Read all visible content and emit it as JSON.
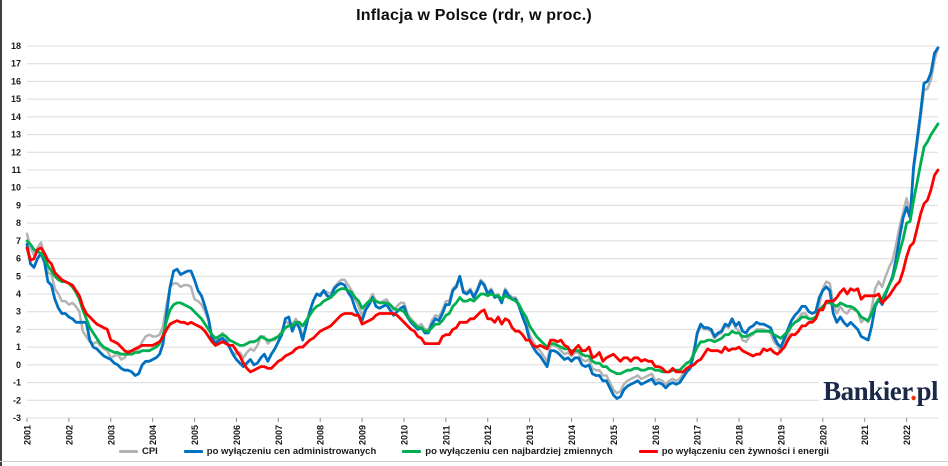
{
  "title": "Inflacja w Polsce (rdr, w proc.)",
  "logo": {
    "main": "Bankier",
    "dot": ".",
    "suffix": "pl"
  },
  "chart_data": {
    "type": "line",
    "title": "Inflacja w Polsce (rdr, w proc.)",
    "x_unit": "monthly",
    "x_start": "2001-01",
    "x_end": "2022-10",
    "ylim": [
      -3,
      18
    ],
    "grid": "horizontal",
    "legend_position": "bottom",
    "y_ticks": [
      -3,
      -2,
      -1,
      0,
      1,
      2,
      3,
      4,
      5,
      6,
      7,
      8,
      9,
      10,
      11,
      12,
      13,
      14,
      15,
      16,
      17,
      18
    ],
    "year_labels": [
      "2001",
      "2002",
      "2003",
      "2004",
      "2005",
      "2006",
      "2007",
      "2008",
      "2009",
      "2010",
      "2011",
      "2012",
      "2013",
      "2014",
      "2015",
      "2016",
      "2017",
      "2018",
      "2019",
      "2020",
      "2021",
      "2022"
    ],
    "series": [
      {
        "name": "CPI",
        "color": "#b3b3b3",
        "values": [
          7.4,
          6.6,
          6.2,
          6.6,
          6.9,
          6.2,
          5.2,
          5.1,
          4.3,
          4.0,
          3.6,
          3.6,
          3.4,
          3.5,
          3.3,
          3.0,
          1.9,
          1.6,
          1.3,
          1.2,
          1.3,
          1.1,
          0.9,
          0.8,
          0.4,
          0.5,
          0.6,
          0.3,
          0.4,
          0.8,
          0.8,
          0.7,
          0.9,
          1.3,
          1.6,
          1.7,
          1.6,
          1.6,
          1.7,
          2.2,
          3.4,
          4.4,
          4.6,
          4.6,
          4.4,
          4.5,
          4.5,
          4.4,
          3.7,
          3.6,
          3.4,
          3.0,
          2.5,
          1.4,
          1.3,
          1.6,
          1.8,
          1.6,
          1.0,
          0.7,
          0.6,
          0.7,
          0.4,
          0.7,
          0.9,
          0.8,
          1.1,
          1.6,
          1.6,
          1.2,
          1.4,
          1.4,
          1.6,
          1.9,
          2.5,
          2.3,
          2.3,
          2.6,
          2.3,
          1.5,
          2.3,
          3.0,
          3.6,
          4.0,
          4.0,
          4.2,
          4.1,
          4.0,
          4.4,
          4.6,
          4.8,
          4.8,
          4.5,
          4.2,
          3.7,
          3.3,
          2.8,
          3.3,
          3.6,
          4.0,
          3.6,
          3.5,
          3.6,
          3.7,
          3.4,
          3.1,
          3.3,
          3.5,
          3.5,
          2.9,
          2.6,
          2.4,
          2.2,
          2.3,
          2.0,
          2.0,
          2.5,
          2.8,
          2.7,
          3.1,
          3.6,
          3.6,
          4.3,
          4.5,
          5.0,
          4.2,
          4.1,
          4.3,
          3.9,
          4.3,
          4.8,
          4.6,
          4.1,
          4.3,
          3.9,
          4.0,
          3.6,
          4.3,
          4.0,
          3.8,
          3.8,
          3.4,
          2.8,
          2.4,
          1.7,
          1.3,
          1.0,
          0.8,
          0.5,
          0.2,
          1.1,
          1.1,
          1.0,
          0.8,
          0.6,
          0.7,
          0.5,
          0.7,
          0.7,
          0.3,
          0.2,
          0.3,
          -0.2,
          -0.3,
          -0.3,
          -0.6,
          -0.6,
          -1.0,
          -1.4,
          -1.6,
          -1.5,
          -1.1,
          -0.9,
          -0.8,
          -0.7,
          -0.6,
          -0.8,
          -0.7,
          -0.6,
          -0.5,
          -0.9,
          -0.8,
          -0.9,
          -1.1,
          -0.9,
          -0.8,
          -0.9,
          -0.8,
          -0.5,
          -0.2,
          0.0,
          0.8,
          1.7,
          2.2,
          2.0,
          2.0,
          1.9,
          1.5,
          1.7,
          1.8,
          2.2,
          2.1,
          2.5,
          2.1,
          1.9,
          1.4,
          1.3,
          1.6,
          1.7,
          2.0,
          2.0,
          2.0,
          1.9,
          1.8,
          1.3,
          1.1,
          0.7,
          1.2,
          1.7,
          2.2,
          2.4,
          2.6,
          2.9,
          2.9,
          2.6,
          2.5,
          2.6,
          3.4,
          4.3,
          4.7,
          4.6,
          3.4,
          2.9,
          3.3,
          3.0,
          2.9,
          3.2,
          3.1,
          3.0,
          2.4,
          2.6,
          2.4,
          3.2,
          4.3,
          4.7,
          4.4,
          5.0,
          5.5,
          5.9,
          6.8,
          7.8,
          8.6,
          9.4,
          8.5,
          11.0,
          12.4,
          13.9,
          15.5,
          15.6,
          16.1,
          17.2,
          17.9
        ]
      },
      {
        "name": "po wyłączeniu cen administrowanych",
        "color": "#0070c0",
        "values": [
          6.8,
          5.7,
          5.5,
          6.0,
          6.3,
          5.8,
          4.7,
          4.5,
          3.7,
          3.2,
          2.9,
          2.9,
          2.7,
          2.6,
          2.4,
          2.4,
          2.4,
          2.4,
          1.4,
          1.0,
          0.9,
          0.7,
          0.5,
          0.4,
          0.3,
          0.1,
          0.0,
          -0.2,
          -0.3,
          -0.3,
          -0.4,
          -0.6,
          -0.5,
          0.0,
          0.2,
          0.2,
          0.3,
          0.4,
          0.6,
          1.2,
          2.9,
          4.4,
          5.3,
          5.4,
          5.1,
          5.2,
          5.3,
          5.3,
          4.8,
          4.2,
          3.9,
          3.3,
          2.6,
          1.5,
          1.2,
          1.4,
          1.5,
          1.3,
          1.0,
          0.6,
          0.3,
          0.1,
          -0.1,
          0.1,
          0.3,
          0.0,
          0.1,
          0.4,
          0.6,
          0.2,
          0.6,
          0.9,
          1.3,
          1.7,
          2.6,
          2.7,
          1.9,
          2.4,
          2.1,
          1.4,
          2.2,
          3.0,
          3.6,
          4.0,
          3.9,
          4.2,
          3.9,
          3.8,
          4.3,
          4.5,
          4.6,
          4.5,
          4.1,
          3.8,
          3.2,
          2.8,
          2.5,
          3.1,
          3.4,
          3.8,
          3.3,
          3.2,
          3.3,
          3.4,
          3.1,
          2.8,
          3.0,
          3.2,
          3.3,
          2.7,
          2.4,
          2.2,
          2.0,
          2.1,
          1.8,
          1.8,
          2.3,
          2.6,
          2.5,
          2.9,
          3.4,
          3.4,
          4.2,
          4.4,
          5.0,
          4.1,
          4.0,
          4.2,
          3.8,
          4.2,
          4.7,
          4.5,
          4.0,
          4.2,
          3.8,
          3.9,
          3.5,
          4.2,
          3.9,
          3.7,
          3.7,
          3.3,
          2.7,
          2.2,
          1.4,
          1.0,
          0.7,
          0.5,
          0.2,
          -0.1,
          0.8,
          0.8,
          0.7,
          0.5,
          0.3,
          0.4,
          0.2,
          0.4,
          0.4,
          0.0,
          -0.1,
          0.0,
          -0.5,
          -0.6,
          -0.6,
          -0.9,
          -0.9,
          -1.3,
          -1.7,
          -1.9,
          -1.8,
          -1.4,
          -1.2,
          -1.1,
          -1.0,
          -0.9,
          -1.1,
          -1.0,
          -0.9,
          -0.8,
          -1.1,
          -1.0,
          -1.1,
          -1.3,
          -1.1,
          -1.0,
          -1.1,
          -1.0,
          -0.7,
          -0.4,
          -0.2,
          0.6,
          1.8,
          2.3,
          2.1,
          2.1,
          2.0,
          1.6,
          1.8,
          1.9,
          2.3,
          2.2,
          2.6,
          2.2,
          2.4,
          1.9,
          1.8,
          2.1,
          2.2,
          2.4,
          2.3,
          2.3,
          2.2,
          2.1,
          1.6,
          1.2,
          1.0,
          1.5,
          2.0,
          2.5,
          2.8,
          3.0,
          3.3,
          3.3,
          3.0,
          2.9,
          3.0,
          3.8,
          4.2,
          4.4,
          4.2,
          2.9,
          2.4,
          2.7,
          2.4,
          2.2,
          2.4,
          2.2,
          2.0,
          1.6,
          1.5,
          1.4,
          2.2,
          3.3,
          3.7,
          3.4,
          4.0,
          4.5,
          5.0,
          6.0,
          7.2,
          8.3,
          8.9,
          8.3,
          11.2,
          12.7,
          14.2,
          15.9,
          16.0,
          16.5,
          17.6,
          17.9
        ]
      },
      {
        "name": "po wyłączeniu cen najbardziej zmiennych",
        "color": "#00b050",
        "values": [
          7.0,
          6.8,
          6.5,
          6.4,
          6.3,
          6.0,
          5.6,
          5.3,
          5.0,
          4.8,
          4.7,
          4.7,
          4.6,
          4.4,
          4.1,
          3.7,
          3.1,
          2.6,
          2.1,
          1.8,
          1.5,
          1.2,
          1.0,
          0.9,
          0.8,
          0.7,
          0.7,
          0.6,
          0.6,
          0.6,
          0.6,
          0.7,
          0.7,
          0.8,
          0.8,
          0.8,
          0.9,
          1.0,
          1.2,
          1.7,
          2.5,
          3.1,
          3.4,
          3.5,
          3.5,
          3.4,
          3.3,
          3.2,
          3.0,
          2.8,
          2.6,
          2.3,
          2.0,
          1.7,
          1.5,
          1.6,
          1.7,
          1.6,
          1.4,
          1.3,
          1.2,
          1.1,
          1.1,
          1.2,
          1.3,
          1.3,
          1.4,
          1.6,
          1.5,
          1.4,
          1.4,
          1.5,
          1.6,
          1.8,
          2.1,
          2.2,
          2.2,
          2.4,
          2.4,
          2.2,
          2.5,
          2.8,
          3.1,
          3.3,
          3.4,
          3.6,
          3.7,
          3.8,
          4.0,
          4.2,
          4.3,
          4.3,
          4.2,
          4.1,
          3.8,
          3.6,
          3.2,
          3.4,
          3.6,
          3.7,
          3.6,
          3.5,
          3.5,
          3.5,
          3.4,
          3.2,
          3.1,
          3.1,
          3.0,
          2.7,
          2.5,
          2.3,
          2.1,
          2.1,
          1.9,
          1.9,
          2.1,
          2.3,
          2.3,
          2.5,
          2.8,
          2.9,
          3.3,
          3.5,
          3.8,
          3.6,
          3.6,
          3.7,
          3.6,
          3.8,
          4.0,
          4.0,
          3.9,
          4.0,
          3.9,
          3.9,
          3.7,
          3.9,
          3.8,
          3.7,
          3.6,
          3.4,
          3.0,
          2.7,
          2.2,
          1.9,
          1.6,
          1.4,
          1.2,
          1.0,
          1.2,
          1.2,
          1.1,
          1.0,
          0.9,
          0.9,
          0.8,
          0.8,
          0.8,
          0.6,
          0.5,
          0.5,
          0.2,
          0.1,
          0.1,
          -0.1,
          -0.1,
          -0.3,
          -0.4,
          -0.5,
          -0.5,
          -0.4,
          -0.3,
          -0.3,
          -0.2,
          -0.2,
          -0.3,
          -0.3,
          -0.2,
          -0.2,
          -0.3,
          -0.3,
          -0.4,
          -0.4,
          -0.4,
          -0.3,
          -0.3,
          -0.3,
          -0.1,
          0.1,
          0.2,
          0.6,
          1.0,
          1.3,
          1.3,
          1.4,
          1.4,
          1.3,
          1.4,
          1.5,
          1.7,
          1.7,
          1.9,
          1.8,
          1.8,
          1.6,
          1.6,
          1.7,
          1.8,
          1.9,
          1.9,
          1.9,
          1.9,
          1.9,
          1.7,
          1.6,
          1.5,
          1.7,
          1.9,
          2.2,
          2.4,
          2.5,
          2.7,
          2.7,
          2.6,
          2.6,
          2.7,
          3.1,
          3.3,
          3.5,
          3.5,
          3.4,
          3.3,
          3.5,
          3.4,
          3.3,
          3.3,
          3.2,
          3.0,
          2.7,
          2.6,
          2.5,
          2.9,
          3.4,
          3.7,
          3.7,
          4.1,
          4.5,
          4.9,
          5.6,
          6.4,
          7.1,
          8.0,
          8.1,
          9.3,
          10.3,
          11.3,
          12.3,
          12.6,
          13.0,
          13.3,
          13.6
        ]
      },
      {
        "name": "po wyłączeniu cen żywności i energii",
        "color": "#ff0000",
        "values": [
          6.6,
          5.9,
          6.0,
          6.5,
          6.6,
          6.3,
          5.9,
          5.7,
          5.2,
          5.0,
          4.8,
          4.7,
          4.6,
          4.5,
          4.2,
          3.9,
          3.3,
          2.9,
          2.7,
          2.5,
          2.3,
          2.2,
          2.1,
          2.0,
          1.4,
          1.3,
          1.2,
          1.0,
          0.8,
          0.7,
          0.8,
          0.9,
          1.0,
          1.1,
          1.1,
          1.1,
          1.1,
          1.2,
          1.3,
          1.6,
          2.0,
          2.3,
          2.4,
          2.5,
          2.4,
          2.4,
          2.3,
          2.4,
          2.3,
          2.2,
          2.1,
          1.9,
          1.6,
          1.3,
          1.1,
          1.2,
          1.3,
          1.2,
          1.1,
          1.1,
          0.8,
          0.5,
          0.1,
          -0.2,
          -0.4,
          -0.3,
          -0.2,
          -0.1,
          -0.1,
          -0.2,
          -0.2,
          0.0,
          0.2,
          0.3,
          0.5,
          0.6,
          0.7,
          0.9,
          1.0,
          1.0,
          1.2,
          1.4,
          1.5,
          1.7,
          1.9,
          2.0,
          2.1,
          2.2,
          2.4,
          2.6,
          2.8,
          2.9,
          2.9,
          2.9,
          2.8,
          2.8,
          2.3,
          2.4,
          2.5,
          2.6,
          2.8,
          2.9,
          2.9,
          2.9,
          2.9,
          2.9,
          2.8,
          2.6,
          2.4,
          2.2,
          2.0,
          1.9,
          1.6,
          1.5,
          1.2,
          1.2,
          1.2,
          1.2,
          1.2,
          1.6,
          1.7,
          1.7,
          2.0,
          2.1,
          2.4,
          2.4,
          2.4,
          2.6,
          2.6,
          2.8,
          3.0,
          3.1,
          2.6,
          2.6,
          2.4,
          2.7,
          2.3,
          2.6,
          2.5,
          2.1,
          1.9,
          1.9,
          1.7,
          1.4,
          1.4,
          1.1,
          1.0,
          1.1,
          1.0,
          0.9,
          1.4,
          1.4,
          1.3,
          1.4,
          1.1,
          1.0,
          0.6,
          0.9,
          1.1,
          0.8,
          0.8,
          1.0,
          0.4,
          0.5,
          0.7,
          0.2,
          0.4,
          0.5,
          0.6,
          0.4,
          0.2,
          0.4,
          0.4,
          0.2,
          0.4,
          0.4,
          0.2,
          0.3,
          0.2,
          0.2,
          -0.1,
          -0.1,
          -0.2,
          -0.4,
          -0.4,
          -0.2,
          -0.4,
          -0.4,
          -0.4,
          -0.2,
          -0.1,
          0.0,
          0.2,
          0.3,
          0.6,
          0.9,
          0.8,
          0.8,
          0.8,
          0.7,
          1.0,
          0.8,
          0.9,
          0.9,
          1.0,
          0.8,
          0.7,
          0.6,
          0.5,
          0.6,
          0.6,
          0.9,
          0.8,
          0.9,
          0.7,
          0.6,
          0.8,
          1.0,
          1.4,
          1.7,
          1.7,
          1.9,
          2.2,
          2.2,
          2.4,
          2.4,
          2.6,
          3.1,
          3.1,
          3.6,
          3.6,
          3.6,
          3.8,
          4.1,
          4.3,
          4.0,
          4.3,
          4.2,
          4.3,
          3.7,
          3.9,
          3.9,
          3.9,
          3.9,
          4.0,
          3.5,
          3.7,
          3.9,
          4.2,
          4.5,
          4.7,
          5.3,
          6.1,
          6.7,
          6.9,
          7.7,
          8.5,
          9.1,
          9.3,
          9.9,
          10.7,
          11.0
        ]
      }
    ]
  }
}
